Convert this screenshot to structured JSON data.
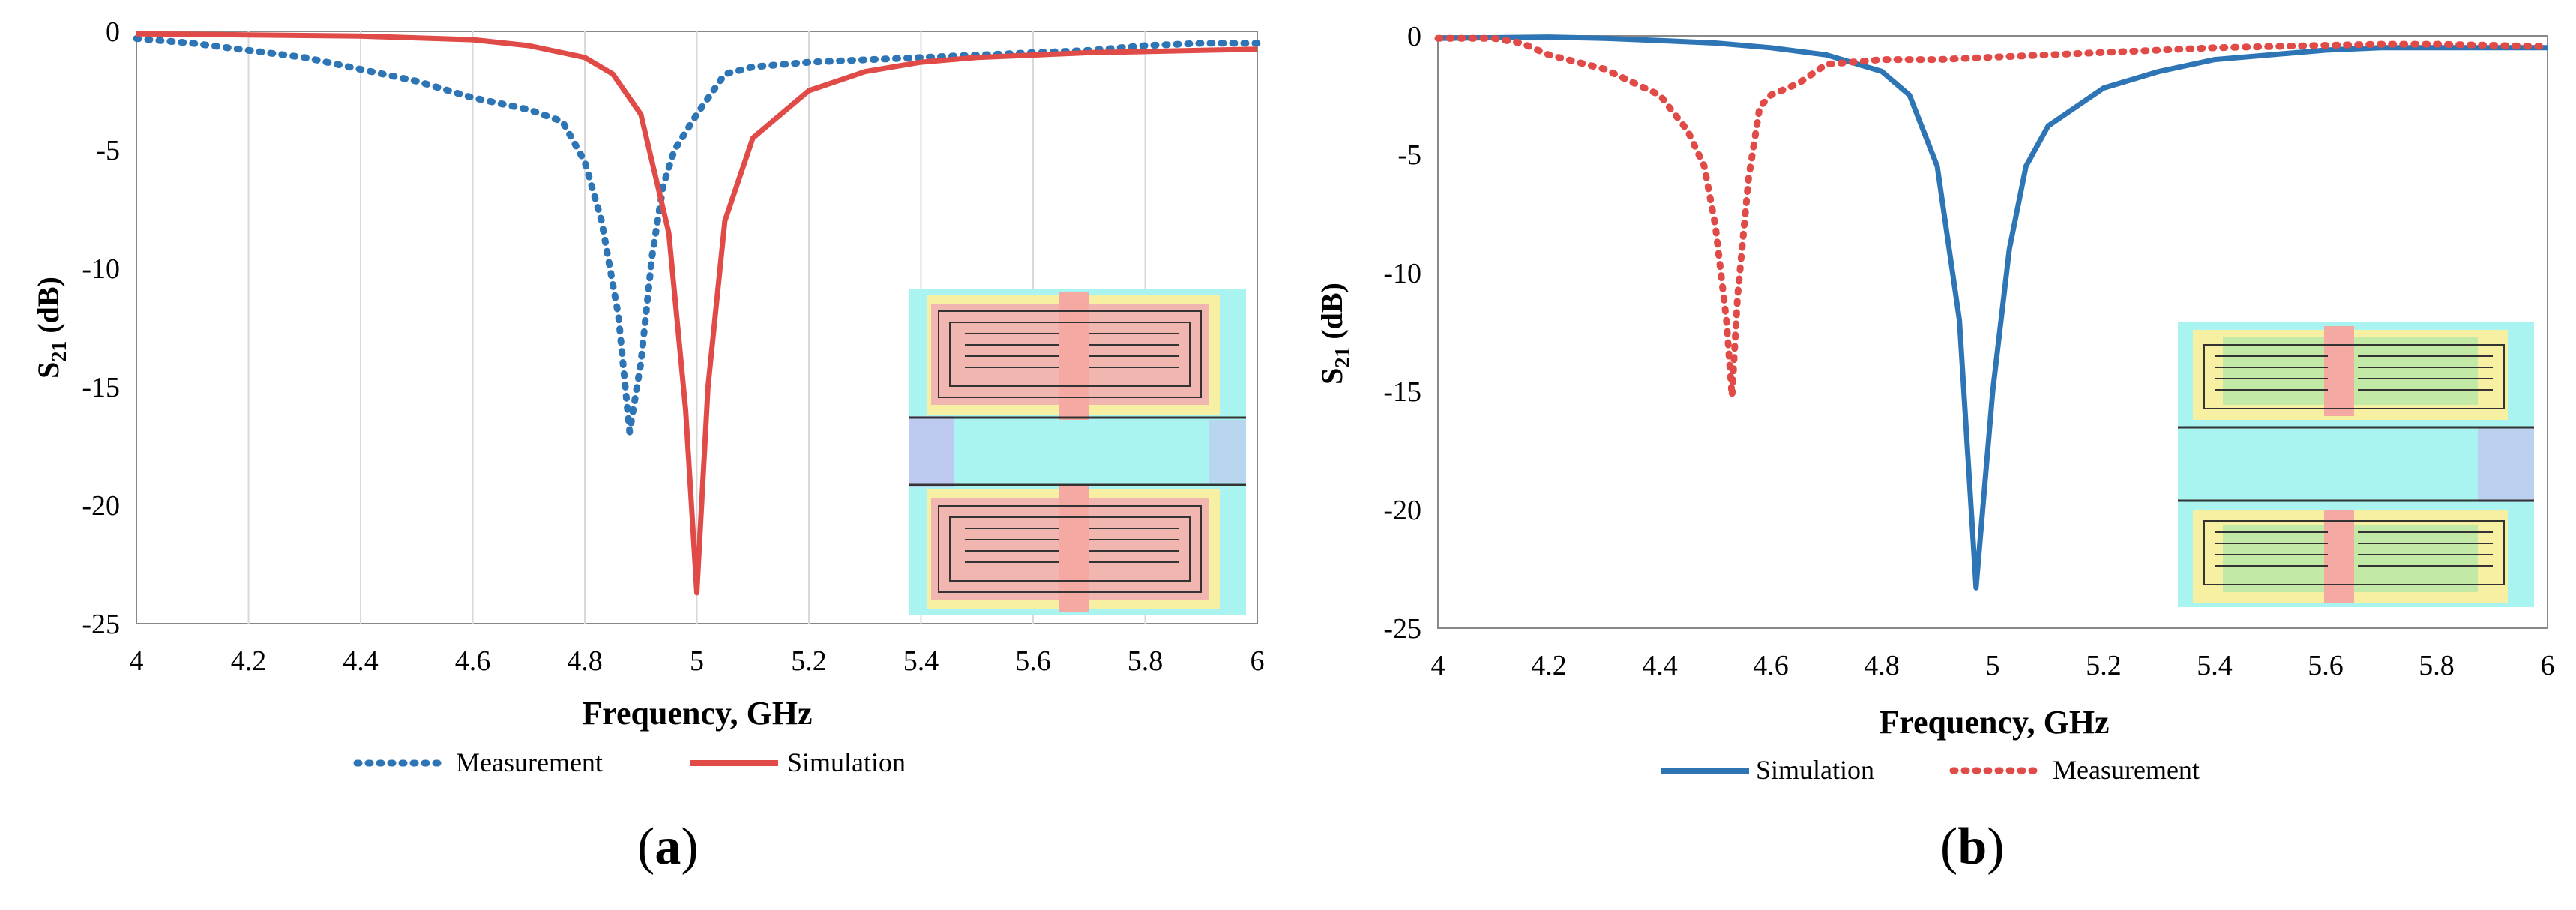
{
  "chart_data": [
    {
      "panel_label": "a",
      "type": "line",
      "xlabel": "Frequency, GHz",
      "ylabel": "S21 (dB)",
      "ylabel_main": "S",
      "ylabel_sub": "21",
      "ylabel_rest": " (dB)",
      "xlim": [
        4,
        6
      ],
      "ylim": [
        -25,
        0
      ],
      "xticks": [
        "4",
        "4.2",
        "4.4",
        "4.6",
        "4.8",
        "5",
        "5.2",
        "5.4",
        "5.6",
        "5.8",
        "6"
      ],
      "yticks": [
        "0",
        "-5",
        "-10",
        "-15",
        "-20",
        "-25"
      ],
      "grid": "vertical",
      "legend_position": "bottom",
      "series": [
        {
          "name": "Measurement",
          "style": "dotted",
          "color": "#2e75b6",
          "x": [
            4.0,
            4.1,
            4.2,
            4.3,
            4.4,
            4.5,
            4.6,
            4.7,
            4.76,
            4.8,
            4.83,
            4.86,
            4.88,
            4.9,
            4.92,
            4.94,
            4.96,
            5.0,
            5.05,
            5.1,
            5.2,
            5.3,
            5.4,
            5.5,
            5.6,
            5.7,
            5.8,
            5.9,
            6.0
          ],
          "y": [
            -0.3,
            -0.5,
            -0.8,
            -1.1,
            -1.6,
            -2.1,
            -2.8,
            -3.3,
            -3.8,
            -5.5,
            -8.0,
            -12.0,
            -16.9,
            -14.0,
            -9.5,
            -6.5,
            -5.0,
            -3.5,
            -1.8,
            -1.5,
            -1.3,
            -1.2,
            -1.1,
            -1.0,
            -0.9,
            -0.8,
            -0.6,
            -0.5,
            -0.5
          ]
        },
        {
          "name": "Simulation",
          "style": "solid",
          "color": "#e04b48",
          "x": [
            4.0,
            4.2,
            4.4,
            4.6,
            4.7,
            4.8,
            4.85,
            4.9,
            4.95,
            4.98,
            5.0,
            5.02,
            5.05,
            5.1,
            5.2,
            5.3,
            5.4,
            5.5,
            5.6,
            5.7,
            5.8,
            5.9,
            6.0
          ],
          "y": [
            -0.1,
            -0.15,
            -0.2,
            -0.35,
            -0.6,
            -1.1,
            -1.8,
            -3.5,
            -8.5,
            -16.0,
            -23.7,
            -15.0,
            -8.0,
            -4.5,
            -2.5,
            -1.7,
            -1.3,
            -1.1,
            -1.0,
            -0.9,
            -0.85,
            -0.8,
            -0.75
          ]
        }
      ]
    },
    {
      "panel_label": "b",
      "type": "line",
      "xlabel": "Frequency, GHz",
      "ylabel": "S21 (dB)",
      "ylabel_main": "S",
      "ylabel_sub": "21",
      "ylabel_rest": " (dB)",
      "xlim": [
        4,
        6
      ],
      "ylim": [
        -25,
        0
      ],
      "xticks": [
        "4",
        "4.2",
        "4.4",
        "4.6",
        "4.8",
        "5",
        "5.2",
        "5.4",
        "5.6",
        "5.8",
        "6"
      ],
      "yticks": [
        "0",
        "-5",
        "-10",
        "-15",
        "-20",
        "-25"
      ],
      "grid": "none",
      "legend_position": "bottom",
      "series": [
        {
          "name": "Simulation",
          "style": "solid",
          "color": "#2e75b6",
          "x": [
            4.0,
            4.2,
            4.3,
            4.4,
            4.5,
            4.6,
            4.7,
            4.8,
            4.85,
            4.9,
            4.94,
            4.97,
            5.0,
            5.03,
            5.06,
            5.1,
            5.2,
            5.3,
            5.4,
            5.5,
            5.6,
            5.7,
            5.8,
            5.9,
            6.0
          ],
          "y": [
            -0.1,
            -0.05,
            -0.1,
            -0.2,
            -0.3,
            -0.5,
            -0.8,
            -1.5,
            -2.5,
            -5.5,
            -12.0,
            -23.3,
            -15.0,
            -9.0,
            -5.5,
            -3.8,
            -2.2,
            -1.5,
            -1.0,
            -0.8,
            -0.6,
            -0.5,
            -0.5,
            -0.5,
            -0.5
          ]
        },
        {
          "name": "Measurement",
          "style": "dotted",
          "color": "#e04b48",
          "x": [
            4.0,
            4.1,
            4.15,
            4.2,
            4.3,
            4.4,
            4.45,
            4.48,
            4.5,
            4.52,
            4.53,
            4.54,
            4.56,
            4.58,
            4.6,
            4.65,
            4.7,
            4.8,
            4.9,
            5.0,
            5.1,
            5.2,
            5.3,
            5.4,
            5.5,
            5.6,
            5.7,
            5.8,
            5.9,
            6.0
          ],
          "y": [
            -0.1,
            -0.1,
            -0.3,
            -0.8,
            -1.4,
            -2.5,
            -4.0,
            -5.5,
            -8.0,
            -12.0,
            -15.2,
            -11.0,
            -6.0,
            -3.0,
            -2.5,
            -2.0,
            -1.2,
            -1.0,
            -1.0,
            -0.9,
            -0.8,
            -0.7,
            -0.6,
            -0.5,
            -0.45,
            -0.4,
            -0.35,
            -0.35,
            -0.4,
            -0.45
          ]
        }
      ]
    }
  ]
}
